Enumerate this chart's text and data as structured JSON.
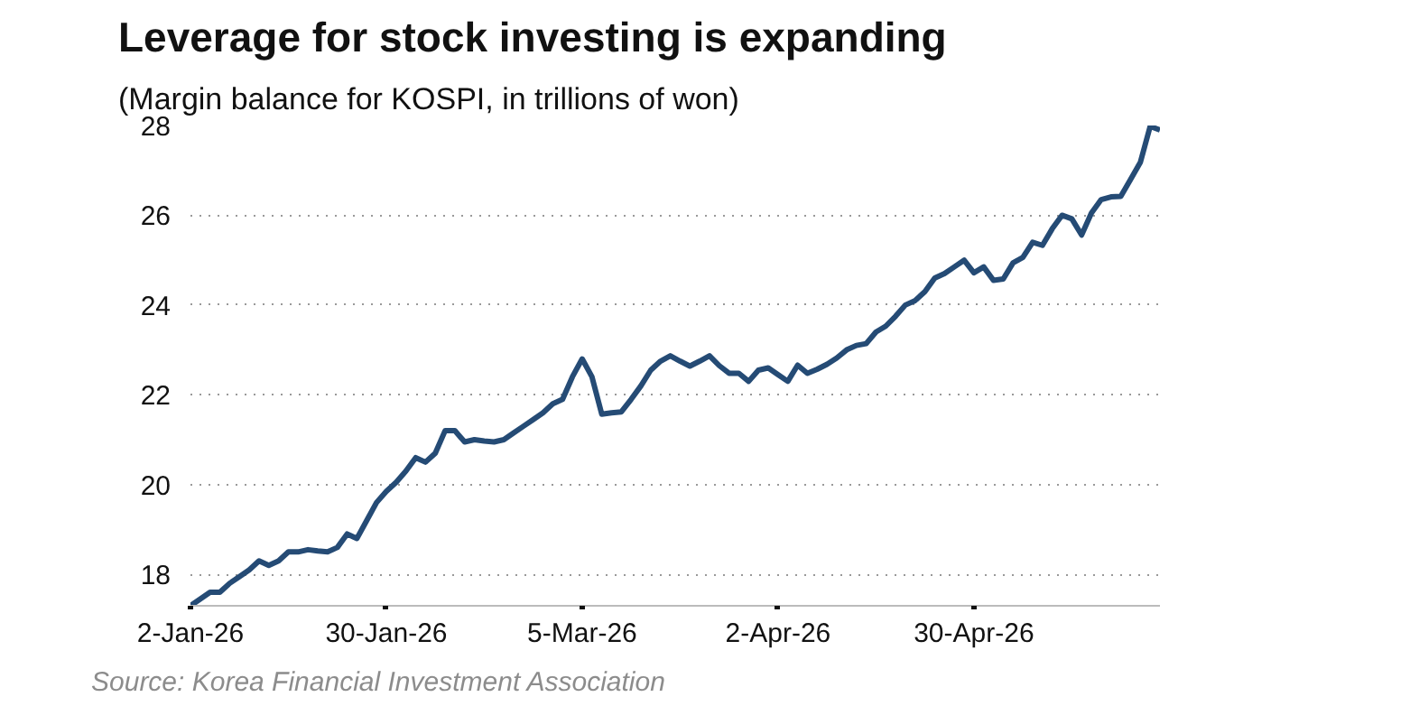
{
  "chart_data": {
    "type": "line",
    "title": "Leverage for stock investing is expanding",
    "subtitle": "(Margin balance for KOSPI, in trillions of won)",
    "annotations": [
      "Source: Korea Financial Investment Association"
    ],
    "categories": [
      "2-Jan-26",
      null,
      null,
      null,
      null,
      null,
      null,
      null,
      null,
      null,
      null,
      null,
      null,
      null,
      null,
      null,
      null,
      null,
      null,
      null,
      "30-Jan-26",
      null,
      null,
      null,
      null,
      null,
      null,
      null,
      null,
      null,
      null,
      null,
      null,
      null,
      null,
      null,
      null,
      null,
      null,
      null,
      "5-Mar-26",
      null,
      null,
      null,
      null,
      null,
      null,
      null,
      null,
      null,
      null,
      null,
      null,
      null,
      null,
      null,
      null,
      null,
      null,
      null,
      "2-Apr-26",
      null,
      null,
      null,
      null,
      null,
      null,
      null,
      null,
      null,
      null,
      null,
      null,
      null,
      null,
      null,
      null,
      null,
      null,
      null,
      "30-Apr-26",
      null,
      null,
      null,
      null,
      null,
      null,
      null,
      null,
      null,
      null,
      null,
      null,
      null,
      null,
      null,
      null,
      null,
      null,
      null
    ],
    "series": [
      {
        "color": "#254b75",
        "values": [
          17.3,
          17.45,
          17.6,
          17.6,
          17.8,
          17.95,
          18.1,
          18.3,
          18.2,
          18.3,
          18.5,
          18.5,
          18.55,
          18.52,
          18.5,
          18.6,
          18.9,
          18.8,
          19.2,
          19.6,
          19.85,
          20.05,
          20.3,
          20.6,
          20.5,
          20.7,
          21.2,
          21.2,
          20.95,
          21.0,
          20.97,
          20.95,
          21.0,
          21.15,
          21.3,
          21.45,
          21.6,
          21.8,
          21.9,
          22.4,
          22.8,
          22.4,
          21.57,
          21.6,
          21.62,
          21.9,
          22.2,
          22.55,
          22.75,
          22.87,
          22.75,
          22.64,
          22.75,
          22.87,
          22.65,
          22.48,
          22.48,
          22.3,
          22.55,
          22.6,
          22.45,
          22.3,
          22.66,
          22.48,
          22.57,
          22.68,
          22.82,
          23.0,
          23.1,
          23.14,
          23.4,
          23.53,
          23.75,
          24.0,
          24.1,
          24.3,
          24.6,
          24.7,
          24.85,
          25.0,
          24.72,
          24.85,
          24.55,
          24.58,
          24.94,
          25.06,
          25.4,
          25.33,
          25.7,
          26.0,
          25.92,
          25.56,
          26.05,
          26.35,
          26.41,
          26.42,
          26.8,
          27.18,
          27.98,
          27.9
        ]
      }
    ],
    "ylim": [
      17.3,
      28
    ],
    "yticks": [
      18,
      20,
      22,
      24,
      26,
      28
    ],
    "grid": "y",
    "marker": "none",
    "line_style": "solid"
  }
}
